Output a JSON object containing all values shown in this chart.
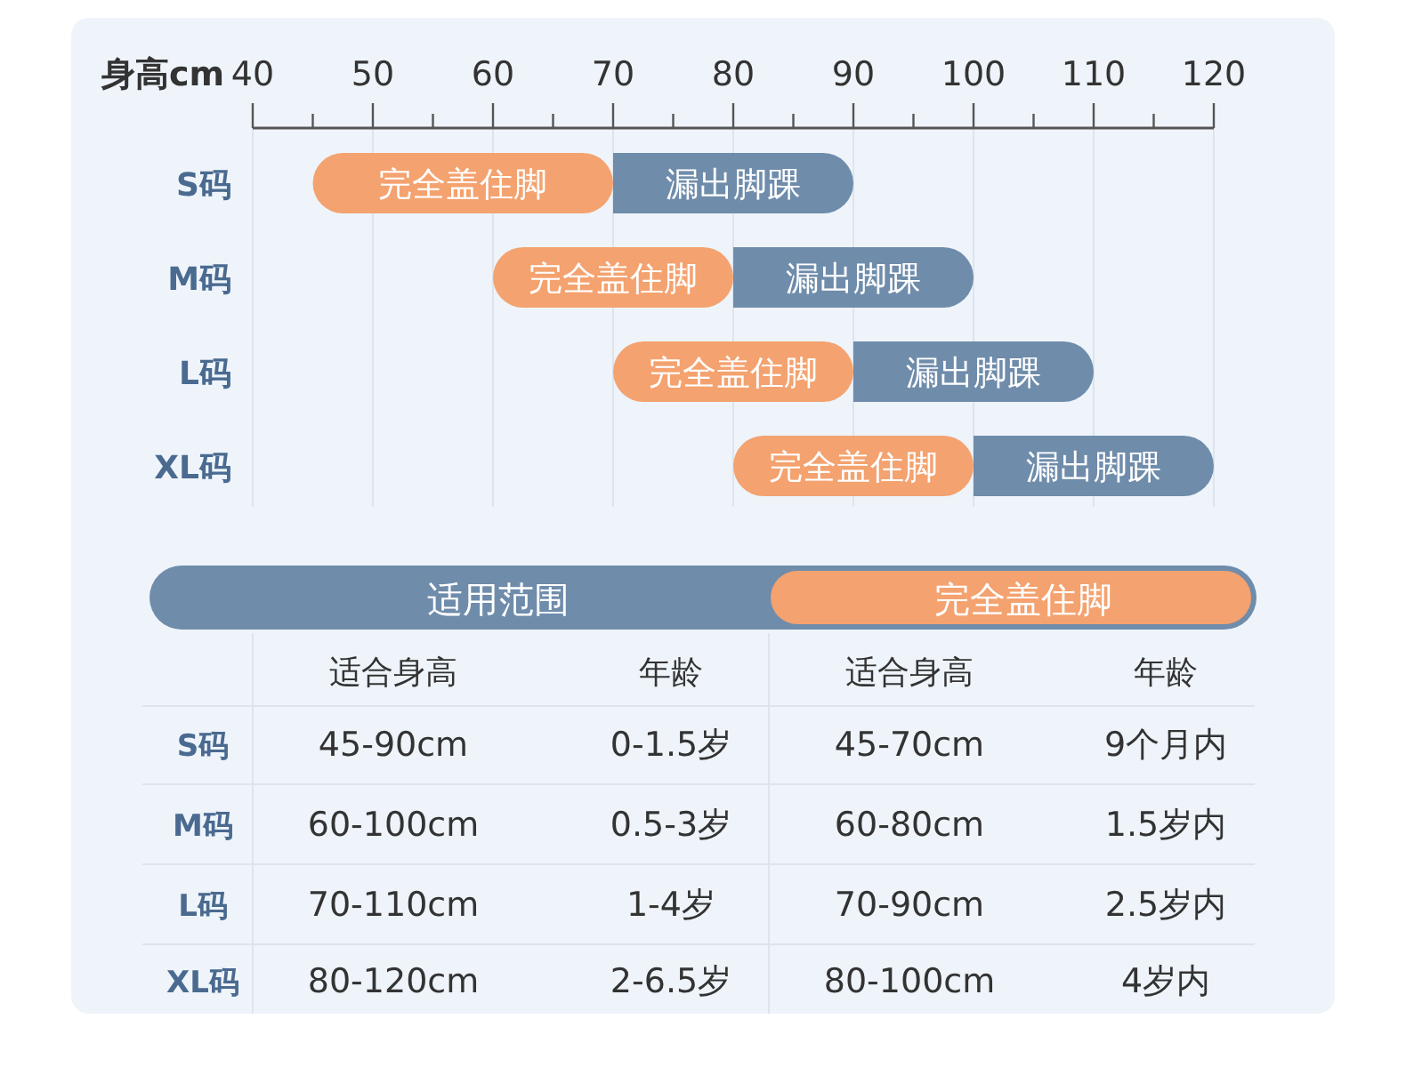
{
  "chart_data": {
    "type": "bar",
    "orientation": "horizontal",
    "xlabel": "身高cm",
    "categories": [
      "S码",
      "M码",
      "L码",
      "XL码"
    ],
    "series": [
      {
        "name": "完全盖住脚",
        "color": "#f4a26f",
        "base": [
          45,
          60,
          70,
          80
        ],
        "values": [
          25,
          20,
          20,
          20
        ]
      },
      {
        "name": "漏出脚踝",
        "color": "#6f8cab",
        "base": [
          70,
          80,
          90,
          100
        ],
        "values": [
          20,
          20,
          20,
          20
        ]
      }
    ],
    "xlim": [
      40,
      120
    ],
    "xticks": [
      40,
      {
        "value": 45,
        "label": null
      },
      50,
      {
        "value": 55,
        "label": null
      },
      60,
      {
        "value": 65,
        "label": null
      },
      70,
      {
        "value": 75,
        "label": null
      },
      80,
      {
        "value": 85,
        "label": null
      },
      90,
      {
        "value": 95,
        "label": null
      },
      100,
      {
        "value": 105,
        "label": null
      },
      110,
      {
        "value": 115,
        "label": null
      },
      120
    ],
    "grid": "x",
    "annotations": [
      "适用范围",
      "完全盖住脚",
      "适合身高",
      "年龄",
      "适合身高",
      "年龄",
      "S码",
      "45-90cm",
      "0-1.5岁",
      "45-70cm",
      "9个月内",
      "M码",
      "60-100cm",
      "0.5-3岁",
      "60-80cm",
      "1.5岁内",
      "L码",
      "70-110cm",
      "1-4岁",
      "70-90cm",
      "2.5岁内",
      "XL码",
      "80-120cm",
      "2-6.5岁",
      "80-100cm",
      "4岁内"
    ]
  }
}
